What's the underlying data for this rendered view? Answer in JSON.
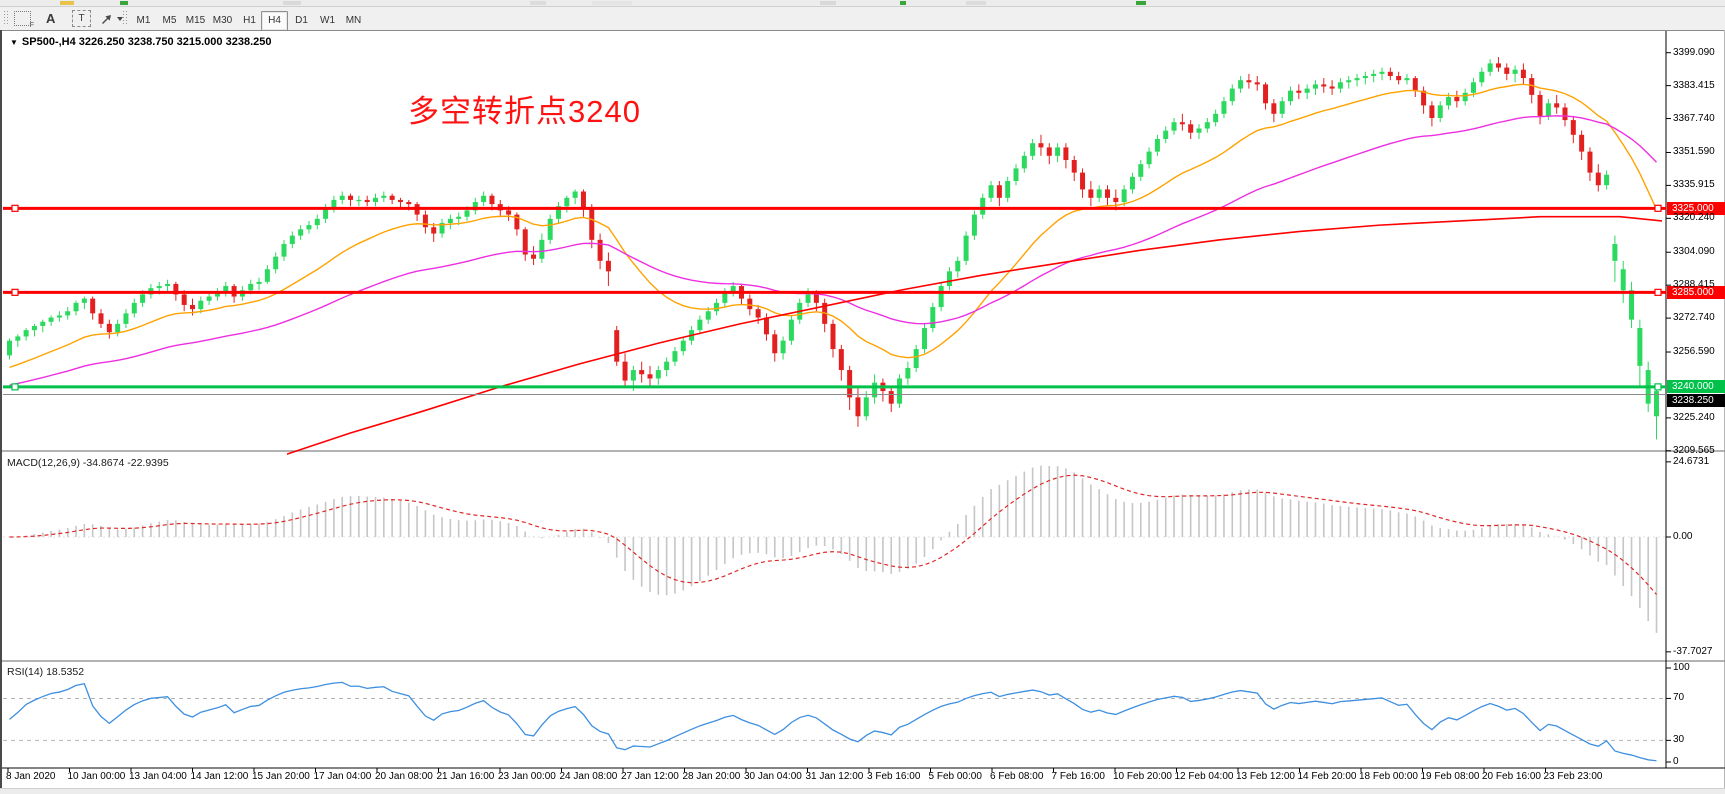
{
  "toolbar": {
    "icons": [
      "grid-font-icon",
      "text-a-icon",
      "text-label-icon",
      "arrow-objects-icon"
    ],
    "icon_a": "A",
    "icon_t": "T",
    "timeframes": [
      "M1",
      "M5",
      "M15",
      "M30",
      "H1",
      "H4",
      "D1",
      "W1",
      "MN"
    ],
    "active_timeframe": "H4"
  },
  "chart": {
    "symbol_header": "SP500-,H4  3226.250 3238.750 3215.000 3238.250",
    "dropdown_glyph": "▼",
    "annotation": {
      "text": "多空转折点3240",
      "color": "#ff1212"
    }
  },
  "chart_data": {
    "type": "candlestick",
    "symbol": "SP500-",
    "timeframe": "H4",
    "current_bar": {
      "open": 3226.25,
      "high": 3238.75,
      "low": 3215.0,
      "close": 3238.25
    },
    "colors": {
      "up": "#2bd95e",
      "down": "#e32020",
      "ma_fast": "#ffa200",
      "ma_mid": "#ee2ee2",
      "ma_slow": "#ff0000",
      "level_red": "#ff0000",
      "level_green": "#00c24a",
      "current_line": "#8c8c8c",
      "current_box": "#000000",
      "macd_hist": "#c6c6c6",
      "macd_signal": "#e02828",
      "rsi_line": "#3e8fe0",
      "rsi_levels": "#b4b4b4"
    },
    "price_axis": {
      "ticks": [
        "3399.090",
        "3383.415",
        "3367.740",
        "3351.590",
        "3335.915",
        "3320.240",
        "3304.090",
        "3288.415",
        "3272.740",
        "3256.590",
        "3225.240",
        "3209.565"
      ],
      "range": [
        3206.0,
        3407.5
      ]
    },
    "levels": [
      {
        "price": 3325.0,
        "label": "3325.000",
        "color": "#ff0000",
        "width": 3
      },
      {
        "price": 3285.0,
        "label": "3285.000",
        "color": "#ff0000",
        "width": 3
      },
      {
        "price": 3240.0,
        "label": "3240.000",
        "color": "#00c24a",
        "width": 3
      }
    ],
    "current_price": {
      "value": 3238.25,
      "label": "3238.250"
    },
    "time_axis": {
      "labels": [
        "8 Jan 2020",
        "10 Jan 00:00",
        "13 Jan 04:00",
        "14 Jan 12:00",
        "15 Jan 20:00",
        "17 Jan 04:00",
        "20 Jan 08:00",
        "21 Jan 16:00",
        "23 Jan 00:00",
        "24 Jan 08:00",
        "27 Jan 12:00",
        "28 Jan 20:00",
        "30 Jan 04:00",
        "31 Jan 12:00",
        "3 Feb 16:00",
        "5 Feb 00:00",
        "6 Feb 08:00",
        "7 Feb 16:00",
        "10 Feb 20:00",
        "12 Feb 04:00",
        "13 Feb 12:00",
        "14 Feb 20:00",
        "18 Feb 00:00",
        "19 Feb 08:00",
        "20 Feb 16:00",
        "23 Feb 23:00"
      ]
    },
    "overlays": {
      "ma_fast": {
        "period": 21,
        "seed": 3248
      },
      "ma_mid": {
        "period": 55,
        "seed": 3240
      },
      "ma_slow_points": [
        [
          287,
          3208
        ],
        [
          350,
          3218
        ],
        [
          420,
          3228
        ],
        [
          500,
          3240
        ],
        [
          580,
          3251
        ],
        [
          660,
          3261
        ],
        [
          740,
          3270
        ],
        [
          820,
          3278
        ],
        [
          900,
          3286
        ],
        [
          980,
          3293
        ],
        [
          1060,
          3299
        ],
        [
          1140,
          3305
        ],
        [
          1220,
          3310
        ],
        [
          1300,
          3314
        ],
        [
          1380,
          3317
        ],
        [
          1460,
          3319
        ],
        [
          1540,
          3321
        ],
        [
          1620,
          3321
        ],
        [
          1662,
          3319
        ]
      ]
    },
    "indicators": {
      "macd": {
        "display": "MACD(12,26,9) -34.8674 -22.9395",
        "params": [
          12,
          26,
          9
        ],
        "values": [
          -34.8674,
          -22.9395
        ],
        "axis": [
          "24.6731",
          "0.00",
          "-37.7027"
        ]
      },
      "rsi": {
        "display": "RSI(14) 18.5352",
        "period": 14,
        "value": 18.5352,
        "levels": [
          70,
          30
        ],
        "axis": [
          "100",
          "70",
          "30",
          "0"
        ]
      }
    },
    "candles": [
      [
        3255,
        3263,
        3253,
        3262
      ],
      [
        3262,
        3265,
        3259,
        3264
      ],
      [
        3264,
        3268,
        3262,
        3267
      ],
      [
        3267,
        3270,
        3264,
        3269
      ],
      [
        3269,
        3272,
        3266,
        3271
      ],
      [
        3271,
        3274,
        3269,
        3273
      ],
      [
        3273,
        3276,
        3271,
        3274
      ],
      [
        3274,
        3278,
        3272,
        3276
      ],
      [
        3276,
        3281,
        3274,
        3280
      ],
      [
        3280,
        3283,
        3277,
        3282
      ],
      [
        3282,
        3283,
        3272,
        3275
      ],
      [
        3275,
        3277,
        3268,
        3270
      ],
      [
        3270,
        3272,
        3263,
        3266
      ],
      [
        3266,
        3272,
        3264,
        3270
      ],
      [
        3270,
        3277,
        3268,
        3275
      ],
      [
        3275,
        3282,
        3273,
        3280
      ],
      [
        3280,
        3286,
        3278,
        3284
      ],
      [
        3284,
        3289,
        3282,
        3287
      ],
      [
        3287,
        3290,
        3284,
        3288
      ],
      [
        3288,
        3291,
        3285,
        3289
      ],
      [
        3289,
        3290,
        3281,
        3284
      ],
      [
        3284,
        3286,
        3276,
        3279
      ],
      [
        3279,
        3282,
        3274,
        3277
      ],
      [
        3277,
        3283,
        3275,
        3281
      ],
      [
        3281,
        3285,
        3279,
        3283
      ],
      [
        3283,
        3287,
        3281,
        3285
      ],
      [
        3285,
        3290,
        3283,
        3288
      ],
      [
        3288,
        3289,
        3280,
        3283
      ],
      [
        3283,
        3288,
        3281,
        3286
      ],
      [
        3286,
        3291,
        3284,
        3289
      ],
      [
        3289,
        3292,
        3286,
        3290
      ],
      [
        3290,
        3298,
        3289,
        3296
      ],
      [
        3296,
        3304,
        3294,
        3302
      ],
      [
        3302,
        3310,
        3300,
        3308
      ],
      [
        3308,
        3314,
        3306,
        3312
      ],
      [
        3312,
        3317,
        3310,
        3315
      ],
      [
        3315,
        3319,
        3313,
        3317
      ],
      [
        3317,
        3322,
        3315,
        3320
      ],
      [
        3320,
        3327,
        3318,
        3325
      ],
      [
        3325,
        3331,
        3323,
        3329
      ],
      [
        3329,
        3333,
        3327,
        3331
      ],
      [
        3331,
        3332,
        3326,
        3329
      ],
      [
        3329,
        3331,
        3326,
        3329
      ],
      [
        3329,
        3331,
        3326,
        3328
      ],
      [
        3328,
        3332,
        3326,
        3330
      ],
      [
        3330,
        3333,
        3328,
        3331
      ],
      [
        3331,
        3332,
        3327,
        3329
      ],
      [
        3329,
        3330,
        3325,
        3328
      ],
      [
        3328,
        3329,
        3324,
        3327
      ],
      [
        3327,
        3328,
        3319,
        3322
      ],
      [
        3322,
        3324,
        3313,
        3316
      ],
      [
        3316,
        3318,
        3309,
        3313
      ],
      [
        3313,
        3320,
        3311,
        3318
      ],
      [
        3318,
        3322,
        3315,
        3320
      ],
      [
        3320,
        3323,
        3317,
        3321
      ],
      [
        3321,
        3326,
        3319,
        3324
      ],
      [
        3324,
        3330,
        3322,
        3328
      ],
      [
        3328,
        3333,
        3326,
        3331
      ],
      [
        3331,
        3332,
        3324,
        3327
      ],
      [
        3327,
        3329,
        3321,
        3324
      ],
      [
        3324,
        3326,
        3319,
        3322
      ],
      [
        3322,
        3323,
        3312,
        3315
      ],
      [
        3315,
        3316,
        3300,
        3303
      ],
      [
        3303,
        3307,
        3298,
        3301
      ],
      [
        3301,
        3313,
        3299,
        3310
      ],
      [
        3310,
        3322,
        3308,
        3320
      ],
      [
        3320,
        3328,
        3318,
        3326
      ],
      [
        3326,
        3331,
        3323,
        3330
      ],
      [
        3330,
        3334,
        3327,
        3333
      ],
      [
        3333,
        3334,
        3321,
        3325
      ],
      [
        3325,
        3327,
        3306,
        3310
      ],
      [
        3310,
        3313,
        3296,
        3300
      ],
      [
        3300,
        3304,
        3288,
        3295
      ],
      [
        3267,
        3269,
        3250,
        3252
      ],
      [
        3252,
        3256,
        3240,
        3243
      ],
      [
        3243,
        3250,
        3238,
        3248
      ],
      [
        3248,
        3252,
        3242,
        3246
      ],
      [
        3246,
        3250,
        3240,
        3244
      ],
      [
        3244,
        3250,
        3241,
        3248
      ],
      [
        3248,
        3254,
        3245,
        3252
      ],
      [
        3252,
        3259,
        3250,
        3257
      ],
      [
        3257,
        3264,
        3255,
        3262
      ],
      [
        3262,
        3269,
        3260,
        3267
      ],
      [
        3267,
        3274,
        3265,
        3272
      ],
      [
        3272,
        3278,
        3270,
        3276
      ],
      [
        3276,
        3282,
        3274,
        3280
      ],
      [
        3280,
        3287,
        3278,
        3285
      ],
      [
        3285,
        3290,
        3283,
        3288
      ],
      [
        3288,
        3289,
        3279,
        3282
      ],
      [
        3282,
        3284,
        3274,
        3277
      ],
      [
        3277,
        3279,
        3270,
        3273
      ],
      [
        3273,
        3275,
        3262,
        3265
      ],
      [
        3265,
        3267,
        3252,
        3256
      ],
      [
        3256,
        3264,
        3253,
        3262
      ],
      [
        3262,
        3274,
        3260,
        3272
      ],
      [
        3272,
        3282,
        3270,
        3280
      ],
      [
        3280,
        3287,
        3278,
        3284
      ],
      [
        3284,
        3286,
        3276,
        3280
      ],
      [
        3280,
        3282,
        3266,
        3270
      ],
      [
        3270,
        3272,
        3254,
        3258
      ],
      [
        3258,
        3260,
        3243,
        3248
      ],
      [
        3248,
        3250,
        3229,
        3235
      ],
      [
        3235,
        3240,
        3221,
        3226
      ],
      [
        3226,
        3238,
        3224,
        3235
      ],
      [
        3235,
        3246,
        3232,
        3242
      ],
      [
        3242,
        3244,
        3233,
        3238
      ],
      [
        3238,
        3240,
        3228,
        3232
      ],
      [
        3232,
        3246,
        3230,
        3244
      ],
      [
        3244,
        3252,
        3241,
        3249
      ],
      [
        3249,
        3260,
        3247,
        3258
      ],
      [
        3258,
        3270,
        3256,
        3268
      ],
      [
        3268,
        3280,
        3266,
        3278
      ],
      [
        3278,
        3290,
        3276,
        3288
      ],
      [
        3288,
        3297,
        3286,
        3295
      ],
      [
        3295,
        3302,
        3292,
        3300
      ],
      [
        3300,
        3314,
        3298,
        3312
      ],
      [
        3312,
        3324,
        3310,
        3322
      ],
      [
        3322,
        3332,
        3320,
        3330
      ],
      [
        3330,
        3338,
        3328,
        3336
      ],
      [
        3336,
        3338,
        3326,
        3330
      ],
      [
        3330,
        3340,
        3328,
        3338
      ],
      [
        3338,
        3346,
        3336,
        3344
      ],
      [
        3344,
        3352,
        3342,
        3350
      ],
      [
        3350,
        3358,
        3348,
        3356
      ],
      [
        3356,
        3360,
        3350,
        3354
      ],
      [
        3354,
        3356,
        3346,
        3350
      ],
      [
        3350,
        3356,
        3347,
        3354
      ],
      [
        3354,
        3356,
        3344,
        3348
      ],
      [
        3348,
        3350,
        3338,
        3342
      ],
      [
        3342,
        3344,
        3330,
        3334
      ],
      [
        3334,
        3338,
        3326,
        3330
      ],
      [
        3330,
        3336,
        3328,
        3334
      ],
      [
        3334,
        3336,
        3326,
        3330
      ],
      [
        3330,
        3334,
        3324,
        3328
      ],
      [
        3328,
        3336,
        3326,
        3334
      ],
      [
        3334,
        3342,
        3332,
        3340
      ],
      [
        3340,
        3348,
        3338,
        3346
      ],
      [
        3346,
        3354,
        3344,
        3352
      ],
      [
        3352,
        3360,
        3350,
        3358
      ],
      [
        3358,
        3364,
        3356,
        3362
      ],
      [
        3362,
        3368,
        3360,
        3366
      ],
      [
        3366,
        3370,
        3362,
        3365
      ],
      [
        3365,
        3367,
        3358,
        3361
      ],
      [
        3361,
        3365,
        3358,
        3363
      ],
      [
        3363,
        3368,
        3361,
        3366
      ],
      [
        3366,
        3372,
        3364,
        3370
      ],
      [
        3370,
        3378,
        3368,
        3376
      ],
      [
        3376,
        3384,
        3374,
        3382
      ],
      [
        3382,
        3388,
        3380,
        3386
      ],
      [
        3386,
        3389,
        3382,
        3385
      ],
      [
        3385,
        3388,
        3381,
        3384
      ],
      [
        3384,
        3385,
        3372,
        3375
      ],
      [
        3375,
        3377,
        3366,
        3370
      ],
      [
        3370,
        3378,
        3368,
        3376
      ],
      [
        3376,
        3383,
        3374,
        3381
      ],
      [
        3381,
        3384,
        3377,
        3380
      ],
      [
        3380,
        3384,
        3377,
        3382
      ],
      [
        3382,
        3386,
        3379,
        3384
      ],
      [
        3384,
        3387,
        3380,
        3383
      ],
      [
        3383,
        3386,
        3379,
        3382
      ],
      [
        3382,
        3387,
        3380,
        3385
      ],
      [
        3385,
        3388,
        3382,
        3386
      ],
      [
        3386,
        3389,
        3383,
        3387
      ],
      [
        3387,
        3390,
        3384,
        3388
      ],
      [
        3388,
        3391,
        3385,
        3389
      ],
      [
        3389,
        3392,
        3386,
        3390
      ],
      [
        3390,
        3392,
        3386,
        3388
      ],
      [
        3388,
        3390,
        3384,
        3386
      ],
      [
        3386,
        3389,
        3384,
        3387
      ],
      [
        3387,
        3388,
        3378,
        3381
      ],
      [
        3381,
        3383,
        3370,
        3374
      ],
      [
        3374,
        3376,
        3364,
        3368
      ],
      [
        3368,
        3376,
        3366,
        3374
      ],
      [
        3374,
        3380,
        3372,
        3378
      ],
      [
        3378,
        3381,
        3373,
        3376
      ],
      [
        3376,
        3382,
        3374,
        3380
      ],
      [
        3380,
        3387,
        3378,
        3385
      ],
      [
        3385,
        3392,
        3383,
        3390
      ],
      [
        3390,
        3396,
        3388,
        3394
      ],
      [
        3394,
        3397,
        3390,
        3392
      ],
      [
        3392,
        3394,
        3386,
        3389
      ],
      [
        3389,
        3393,
        3385,
        3391
      ],
      [
        3391,
        3394,
        3384,
        3387
      ],
      [
        3387,
        3389,
        3375,
        3379
      ],
      [
        3379,
        3381,
        3365,
        3369
      ],
      [
        3369,
        3377,
        3367,
        3375
      ],
      [
        3375,
        3379,
        3370,
        3373
      ],
      [
        3373,
        3375,
        3364,
        3367
      ],
      [
        3367,
        3369,
        3356,
        3360
      ],
      [
        3360,
        3362,
        3348,
        3352
      ],
      [
        3352,
        3354,
        3338,
        3342
      ],
      [
        3342,
        3346,
        3333,
        3336
      ],
      [
        3336,
        3343,
        3334,
        3341
      ],
      [
        3300,
        3312,
        3290,
        3308
      ],
      [
        3286,
        3300,
        3280,
        3296
      ],
      [
        3272,
        3290,
        3268,
        3286
      ],
      [
        3250,
        3272,
        3240,
        3268
      ],
      [
        3232,
        3252,
        3228,
        3248
      ],
      [
        3226,
        3239,
        3215,
        3238
      ]
    ]
  }
}
